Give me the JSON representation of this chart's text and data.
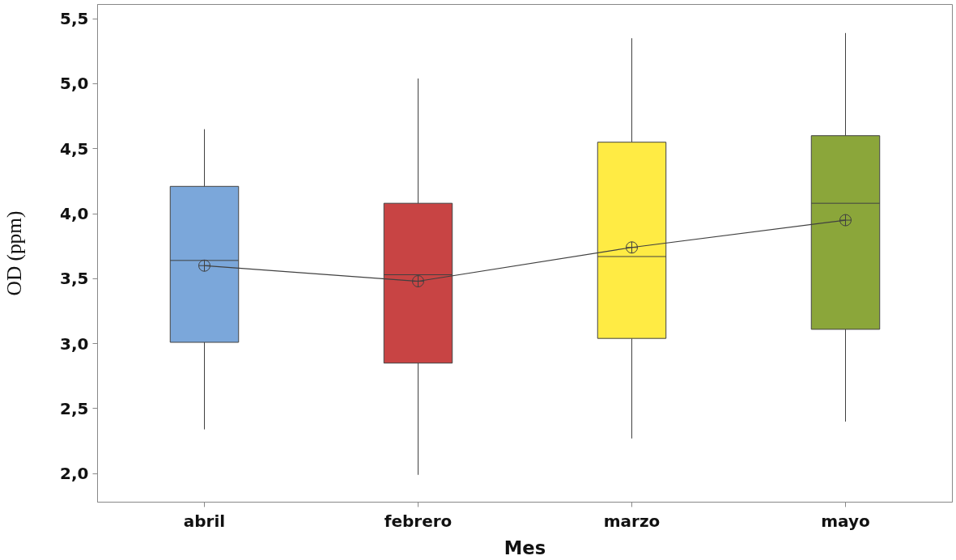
{
  "chart_data": {
    "type": "box",
    "xlabel": "Mes",
    "ylabel": "OD (ppm)",
    "categories": [
      "abril",
      "febrero",
      "marzo",
      "mayo"
    ],
    "colors": [
      "#7ba7da",
      "#c84444",
      "#ffeb44",
      "#8ba63a"
    ],
    "boxes": [
      {
        "low": 2.34,
        "q1": 3.01,
        "median": 3.64,
        "q3": 4.21,
        "high": 4.65,
        "mean": 3.6
      },
      {
        "low": 1.99,
        "q1": 2.85,
        "median": 3.53,
        "q3": 4.08,
        "high": 5.04,
        "mean": 3.48
      },
      {
        "low": 2.27,
        "q1": 3.04,
        "median": 3.67,
        "q3": 4.55,
        "high": 5.35,
        "mean": 3.74
      },
      {
        "low": 2.4,
        "q1": 3.11,
        "median": 4.08,
        "q3": 4.6,
        "high": 5.39,
        "mean": 3.95
      }
    ],
    "series": [
      {
        "type": "line",
        "color": "#404040",
        "values": [
          3.6,
          3.48,
          3.74,
          3.95
        ]
      }
    ],
    "ylim": [
      1.78,
      5.61
    ],
    "yticks": [
      {
        "value": 2.0,
        "label": "2,0"
      },
      {
        "value": 2.5,
        "label": "2,5"
      },
      {
        "value": 3.0,
        "label": "3,0"
      },
      {
        "value": 3.5,
        "label": "3,5"
      },
      {
        "value": 4.0,
        "label": "4,0"
      },
      {
        "value": 4.5,
        "label": "4,5"
      },
      {
        "value": 5.0,
        "label": "5,0"
      },
      {
        "value": 5.5,
        "label": "5,5"
      }
    ],
    "grid": false
  }
}
